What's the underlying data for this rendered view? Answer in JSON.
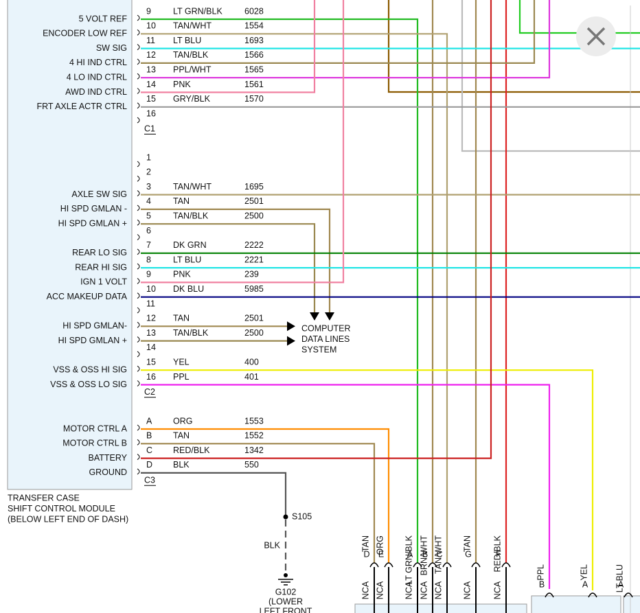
{
  "module": {
    "name_lines": [
      "TRANSFER CASE",
      "SHIFT CONTROL MODULE",
      "(BELOW LEFT END OF DASH)"
    ],
    "connectors": [
      {
        "label": "C1",
        "pins": [
          {
            "pin": "9",
            "function": "5 VOLT REF",
            "wire": "LT GRN/BLK",
            "circuit": "6028",
            "stroke": "#22bb22"
          },
          {
            "pin": "10",
            "function": "ENCODER LOW REF",
            "wire": "TAN/WHT",
            "circuit": "1554",
            "stroke": "#b0a070"
          },
          {
            "pin": "11",
            "function": "SW SIG",
            "wire": "LT BLU",
            "circuit": "1693",
            "stroke": "#22e5e5"
          },
          {
            "pin": "12",
            "function": "4 HI IND CTRL",
            "wire": "TAN/BLK",
            "circuit": "1566",
            "stroke": "#9a8850"
          },
          {
            "pin": "13",
            "function": "4 LO IND CTRL",
            "wire": "PPL/WHT",
            "circuit": "1565",
            "stroke": "#dd33dd"
          },
          {
            "pin": "14",
            "function": "AWD IND CTRL",
            "wire": "PNK",
            "circuit": "1561",
            "stroke": "#f080a0"
          },
          {
            "pin": "15",
            "function": "FRT AXLE ACTR CTRL",
            "wire": "GRY/BLK",
            "circuit": "1570",
            "stroke": "#999999"
          },
          {
            "pin": "16"
          }
        ]
      },
      {
        "label": "C2",
        "pins": [
          {
            "pin": "1"
          },
          {
            "pin": "2"
          },
          {
            "pin": "3",
            "function": "AXLE SW SIG",
            "wire": "TAN/WHT",
            "circuit": "1695",
            "stroke": "#b0a070"
          },
          {
            "pin": "4",
            "function": "HI SPD GMLAN -",
            "wire": "TAN",
            "circuit": "2501",
            "stroke": "#a08850"
          },
          {
            "pin": "5",
            "function": "HI SPD GMLAN +",
            "wire": "TAN/BLK",
            "circuit": "2500",
            "stroke": "#9a8850"
          },
          {
            "pin": "6"
          },
          {
            "pin": "7",
            "function": "REAR LO SIG",
            "wire": "DK GRN",
            "circuit": "2222",
            "stroke": "#008000"
          },
          {
            "pin": "8",
            "function": "REAR HI SIG",
            "wire": "LT BLU",
            "circuit": "2221",
            "stroke": "#22e5e5"
          },
          {
            "pin": "9",
            "function": "IGN 1 VOLT",
            "wire": "PNK",
            "circuit": "239",
            "stroke": "#f080a0"
          },
          {
            "pin": "10",
            "function": "ACC MAKEUP DATA",
            "wire": "DK BLU",
            "circuit": "5985",
            "stroke": "#000080"
          },
          {
            "pin": "11"
          },
          {
            "pin": "12",
            "function": "HI SPD GMLAN-",
            "wire": "TAN",
            "circuit": "2501",
            "stroke": "#a08850"
          },
          {
            "pin": "13",
            "function": "HI SPD GMLAN +",
            "wire": "TAN/BLK",
            "circuit": "2500",
            "stroke": "#9a8850"
          },
          {
            "pin": "14"
          },
          {
            "pin": "15",
            "function": "VSS & OSS HI SIG",
            "wire": "YEL",
            "circuit": "400",
            "stroke": "#eeee00"
          },
          {
            "pin": "16",
            "function": "VSS & OSS LO SIG",
            "wire": "PPL",
            "circuit": "401",
            "stroke": "#ee22ee"
          }
        ]
      },
      {
        "label": "C3",
        "pins": [
          {
            "pin": "A",
            "function": "MOTOR CTRL A",
            "wire": "ORG",
            "circuit": "1553",
            "stroke": "#ff8c00"
          },
          {
            "pin": "B",
            "function": "MOTOR CTRL B",
            "wire": "TAN",
            "circuit": "1552",
            "stroke": "#a08850"
          },
          {
            "pin": "C",
            "function": "BATTERY",
            "wire": "RED/BLK",
            "circuit": "1342",
            "stroke": "#cc2222"
          },
          {
            "pin": "D",
            "function": "GROUND",
            "wire": "BLK",
            "circuit": "550",
            "stroke": "#555555"
          }
        ]
      }
    ]
  },
  "data_lines_system": [
    "COMPUTER",
    "DATA LINES",
    "SYSTEM"
  ],
  "splice": "S105",
  "ground_wire": "BLK",
  "ground": {
    "label": "G102",
    "location_lines": [
      "(LOWER",
      "LEFT FRONT"
    ]
  },
  "bottom_connectors": [
    {
      "wire": "TAN",
      "pin": "D",
      "note": "NCA"
    },
    {
      "wire": "ORG",
      "pin": "E",
      "note": "NCA"
    },
    {
      "wire": "LT GRN/BLK",
      "pin": "A",
      "note": "NCA"
    },
    {
      "wire": "BRN/WHT",
      "pin": "B",
      "note": "NCA"
    },
    {
      "wire": "TAN/WHT",
      "pin": "C",
      "note": "NCA"
    },
    {
      "wire": "TAN",
      "pin": "G",
      "note": "NCA"
    },
    {
      "wire": "RED/BLK",
      "pin": "F",
      "note": "NCA"
    },
    {
      "wire": "PPL",
      "pin": "B"
    },
    {
      "wire": "YEL",
      "pin": "A"
    },
    {
      "wire": "LT BLU",
      "pin": "A"
    }
  ]
}
